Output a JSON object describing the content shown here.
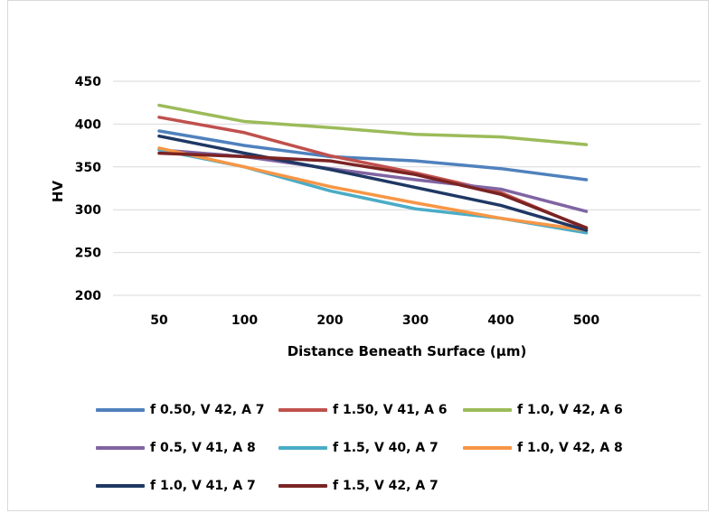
{
  "chart_data": {
    "type": "line",
    "title": "",
    "xlabel": "Distance Beneath Surface (µm)",
    "ylabel": "HV",
    "categories": [
      "50",
      "100",
      "200",
      "300",
      "400",
      "500"
    ],
    "ylim": [
      200,
      450
    ],
    "yticks": [
      "450",
      "400",
      "350",
      "300",
      "250",
      "200"
    ],
    "grid": true,
    "legend_position": "bottom",
    "series": [
      {
        "name": "f 0.50, V 42, A 7",
        "color": "#4f81bd",
        "values": [
          392,
          375,
          362,
          357,
          348,
          335
        ]
      },
      {
        "name": "f 1.50, V 41, A 6",
        "color": "#c0504d",
        "values": [
          408,
          390,
          363,
          343,
          320,
          278
        ]
      },
      {
        "name": "f 1.0, V 42, A 6",
        "color": "#9bbb59",
        "values": [
          422,
          403,
          396,
          388,
          385,
          376
        ]
      },
      {
        "name": "f 0.5, V 41, A 8",
        "color": "#8064a2",
        "values": [
          370,
          362,
          348,
          335,
          324,
          298
        ]
      },
      {
        "name": "f 1.5, V 40, A 7",
        "color": "#4bacc6",
        "values": [
          370,
          350,
          322,
          301,
          290,
          273
        ]
      },
      {
        "name": "f 1.0, V 42, A 8",
        "color": "#f79646",
        "values": [
          372,
          350,
          327,
          308,
          290,
          276
        ]
      },
      {
        "name": "f 1.0, V 41, A 7",
        "color": "#1f3864",
        "values": [
          386,
          366,
          347,
          326,
          305,
          276
        ]
      },
      {
        "name": "f 1.5, V 42, A 7",
        "color": "#7b2323",
        "values": [
          366,
          362,
          357,
          341,
          318,
          279
        ]
      }
    ]
  }
}
